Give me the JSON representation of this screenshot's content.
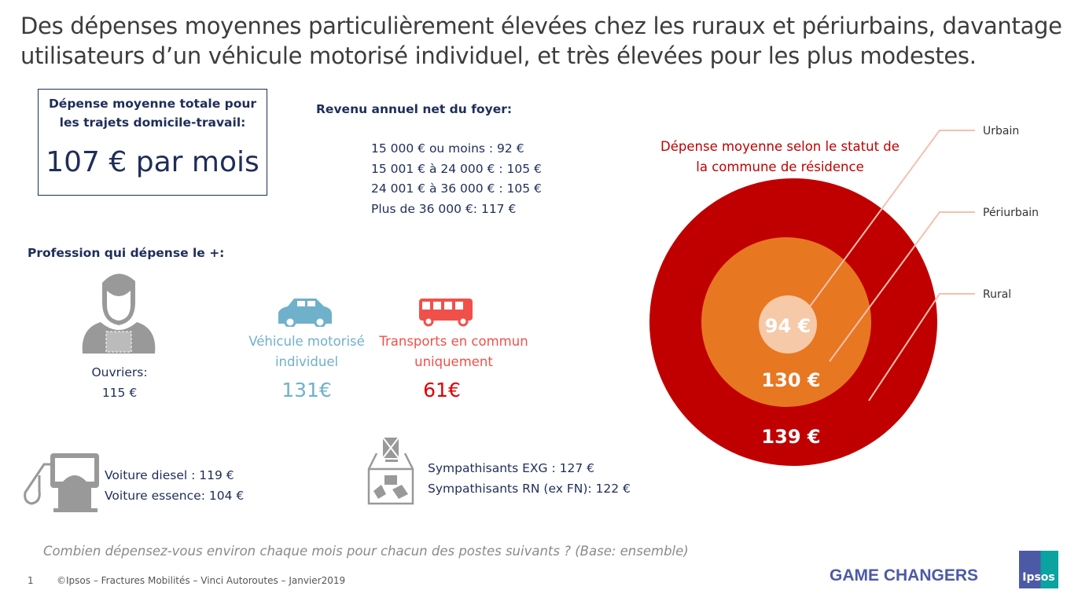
{
  "title": "Des dépenses moyennes particulièrement élevées chez les ruraux et périurbains, davantage utilisateurs d’un véhicule motorisé individuel, et très élevées pour les plus modestes.",
  "total": {
    "label": "Dépense moyenne totale pour les trajets domicile-travail:",
    "value": "107 € par mois"
  },
  "income": {
    "heading": "Revenu annuel net du foyer:",
    "rows": [
      "15 000 € ou moins : 92 €",
      "15 001 € à 24 000 € : 105 €",
      "24 001 € à 36 000 € : 105 €",
      "Plus de 36 000 €: 117 €"
    ]
  },
  "profession": {
    "heading": "Profession qui dépense le +:",
    "label": "Ouvriers:",
    "value": "115 €"
  },
  "vehicle": {
    "label1": "Véhicule motorisé",
    "label2": "individuel",
    "value": "131€",
    "color": "#6fb1cb"
  },
  "transport": {
    "label1": "Transports en commun",
    "label2": "uniquement",
    "value": "61€",
    "color": "#f0504a"
  },
  "fuel": {
    "rows": [
      "Voiture diesel : 119 €",
      "Voiture essence: 104 €"
    ]
  },
  "politics": {
    "rows": [
      "Sympathisants EXG : 127 €",
      "Sympathisants RN (ex FN): 122 €"
    ]
  },
  "question": "Combien dépensez-vous environ chaque mois pour chacun des postes suivants ? (Base: ensemble)",
  "footer": {
    "page": "1",
    "copyright": "©Ipsos – Fractures Mobilités – Vinci Autoroutes – Janvier2019",
    "tagline": "GAME CHANGERS",
    "logo": "Ipsos"
  },
  "chart_data": {
    "type": "nested-circles",
    "title": "Dépense moyenne selon le statut de la commune de résidence",
    "categories": [
      "Rural",
      "Périurbain",
      "Urbain"
    ],
    "values": [
      139,
      130,
      94
    ],
    "value_labels": [
      "139 €",
      "130 €",
      "94 €"
    ],
    "colors": [
      "#c00000",
      "#e87722",
      "#f6c9a8"
    ]
  }
}
